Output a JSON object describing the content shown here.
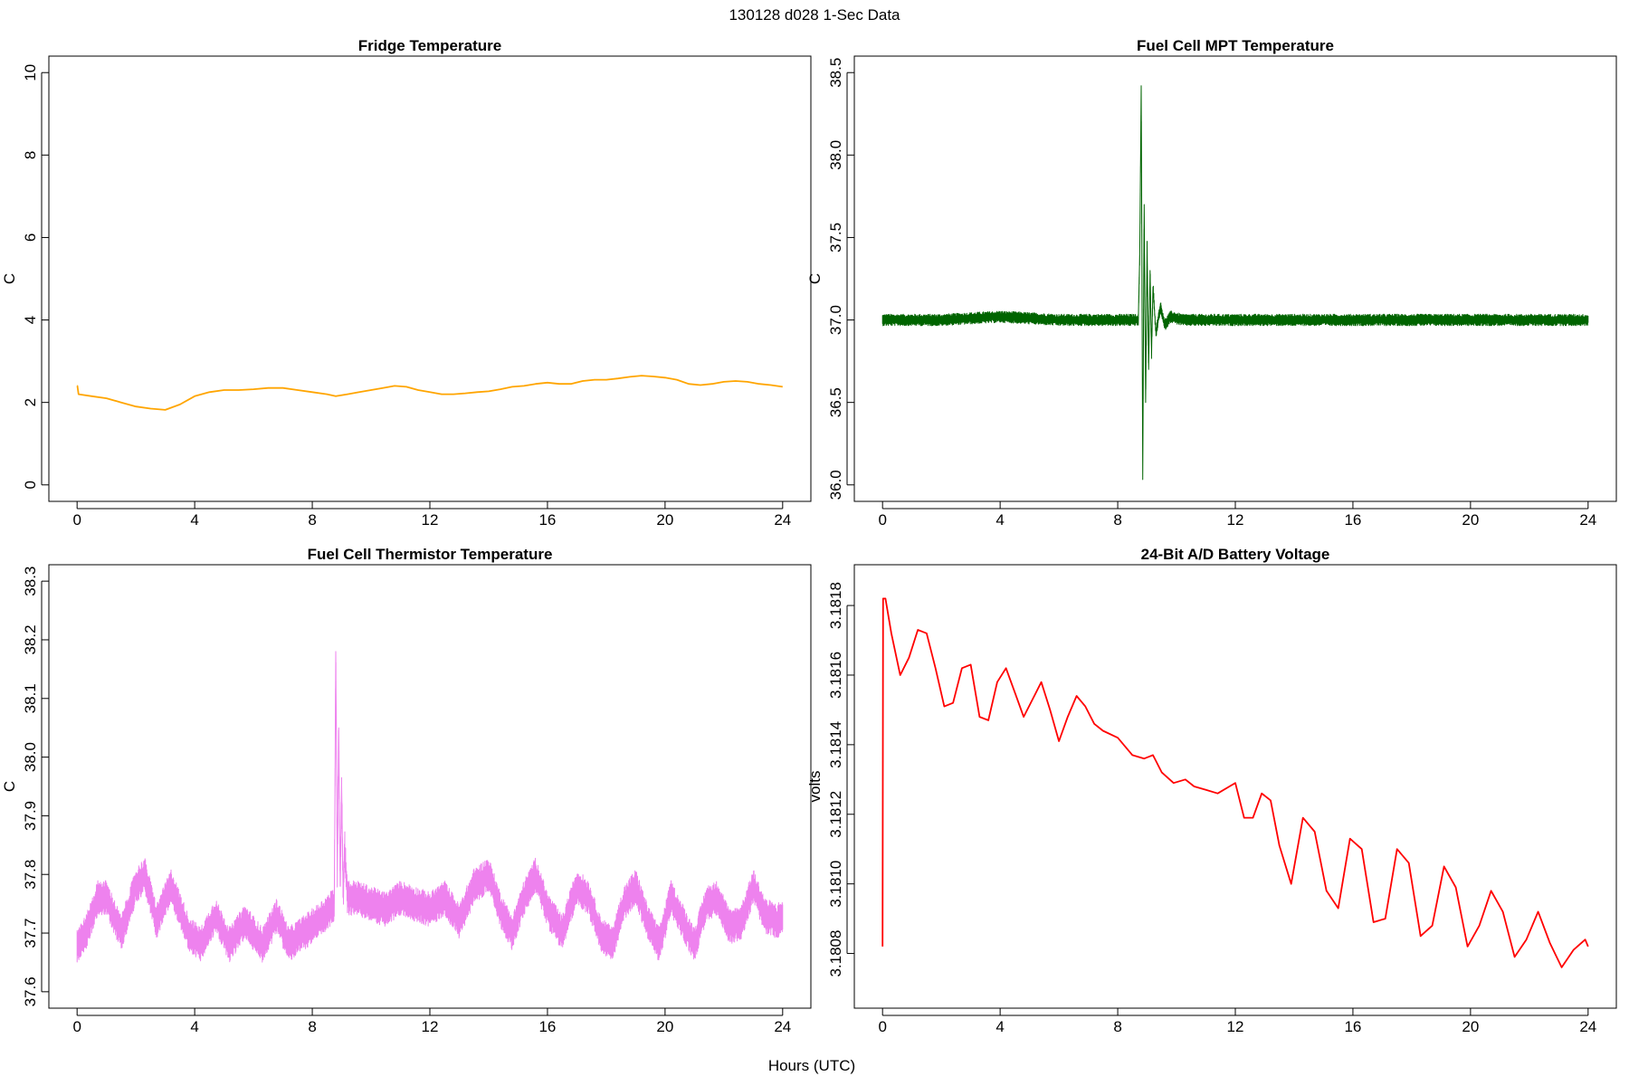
{
  "page": {
    "suptitle": "130128   d028   1-Sec Data",
    "common_xlabel": "Hours (UTC)"
  },
  "chart_data": [
    {
      "type": "line",
      "title": "Fridge Temperature",
      "xlabel": "",
      "ylabel": "C",
      "xlim": [
        0,
        24
      ],
      "ylim": [
        0,
        10
      ],
      "xticks": [
        0,
        4,
        8,
        12,
        16,
        20,
        24
      ],
      "yticks": [
        0,
        2,
        4,
        6,
        8,
        10
      ],
      "ytick_labels": [
        "0",
        "2",
        "4",
        "6",
        "8",
        "10"
      ],
      "grid": false,
      "color": "#FFA500",
      "noise": 0,
      "series": [
        {
          "x": [
            0,
            0.01,
            0.05,
            0.5,
            1,
            1.5,
            2,
            2.5,
            3,
            3.5,
            4,
            4.5,
            5,
            5.5,
            6,
            6.5,
            7,
            7.5,
            8,
            8.5,
            8.8,
            9.2,
            9.6,
            10,
            10.4,
            10.8,
            11.2,
            11.6,
            12,
            12.4,
            12.8,
            13.2,
            13.6,
            14,
            14.4,
            14.8,
            15.2,
            15.6,
            16,
            16.4,
            16.8,
            17.2,
            17.6,
            18,
            18.4,
            18.8,
            19.2,
            19.6,
            20,
            20.4,
            20.8,
            21.2,
            21.6,
            22,
            22.4,
            22.8,
            23.2,
            23.6,
            24
          ],
          "y": [
            2.4,
            2.4,
            2.2,
            2.15,
            2.1,
            2.0,
            1.9,
            1.85,
            1.82,
            1.95,
            2.15,
            2.25,
            2.3,
            2.3,
            2.32,
            2.35,
            2.35,
            2.3,
            2.25,
            2.2,
            2.15,
            2.2,
            2.25,
            2.3,
            2.35,
            2.4,
            2.38,
            2.3,
            2.25,
            2.2,
            2.2,
            2.22,
            2.25,
            2.27,
            2.32,
            2.38,
            2.4,
            2.45,
            2.48,
            2.45,
            2.45,
            2.52,
            2.55,
            2.55,
            2.58,
            2.62,
            2.65,
            2.63,
            2.6,
            2.55,
            2.45,
            2.42,
            2.45,
            2.5,
            2.52,
            2.5,
            2.45,
            2.42,
            2.38
          ]
        }
      ]
    },
    {
      "type": "line",
      "title": "Fuel Cell MPT Temperature",
      "xlabel": "",
      "ylabel": "C",
      "xlim": [
        0,
        24
      ],
      "ylim": [
        36,
        38.5
      ],
      "xticks": [
        0,
        4,
        8,
        12,
        16,
        20,
        24
      ],
      "yticks": [
        36,
        36.5,
        37,
        37.5,
        38,
        38.5
      ],
      "ytick_labels": [
        "36.0",
        "36.5",
        "37.0",
        "37.5",
        "38.0",
        "38.5"
      ],
      "grid": false,
      "color": "#006400",
      "noise": 0.035,
      "series": [
        {
          "x": [
            0,
            2,
            4,
            6,
            8.7,
            8.75,
            8.8,
            8.85,
            8.9,
            8.95,
            9.0,
            9.05,
            9.1,
            9.15,
            9.2,
            9.3,
            9.45,
            9.6,
            9.8,
            10.2,
            12,
            14,
            16,
            18,
            20,
            22,
            24
          ],
          "y": [
            37.0,
            37.0,
            37.02,
            37.0,
            37.0,
            37.4,
            38.42,
            36.05,
            37.7,
            36.5,
            37.45,
            36.7,
            37.3,
            36.8,
            37.2,
            36.92,
            37.08,
            36.97,
            37.02,
            37.0,
            37.0,
            37.0,
            37.0,
            37.0,
            37.0,
            37.0,
            37.0
          ]
        }
      ]
    },
    {
      "type": "line",
      "title": "Fuel Cell Thermistor Temperature",
      "xlabel": "",
      "ylabel": "C",
      "xlim": [
        0,
        24
      ],
      "ylim": [
        37.6,
        38.3
      ],
      "xticks": [
        0,
        4,
        8,
        12,
        16,
        20,
        24
      ],
      "yticks": [
        37.6,
        37.7,
        37.8,
        37.9,
        38.0,
        38.1,
        38.2,
        38.3
      ],
      "ytick_labels": [
        "37.6",
        "37.7",
        "37.8",
        "37.9",
        "38.0",
        "38.1",
        "38.2",
        "38.3"
      ],
      "grid": false,
      "color": "#EE82EE",
      "noise": 0.03,
      "series": [
        {
          "x": [
            0,
            0.3,
            0.7,
            1.0,
            1.5,
            2.0,
            2.3,
            2.7,
            3.2,
            3.8,
            4.2,
            4.7,
            5.2,
            5.7,
            6.3,
            6.8,
            7.2,
            7.7,
            8.2,
            8.6,
            8.75,
            8.8,
            8.85,
            8.9,
            8.95,
            9.0,
            9.05,
            9.1,
            9.2,
            9.5,
            10,
            10.5,
            11,
            11.5,
            12,
            12.5,
            13,
            13.5,
            14,
            14.4,
            14.8,
            15.2,
            15.6,
            16,
            16.5,
            17,
            17.4,
            17.8,
            18.2,
            18.6,
            19.0,
            19.4,
            19.8,
            20.2,
            20.6,
            21.0,
            21.4,
            21.8,
            22.2,
            22.6,
            23.0,
            23.4,
            23.8,
            24
          ],
          "y": [
            37.68,
            37.7,
            37.76,
            37.76,
            37.7,
            37.78,
            37.8,
            37.72,
            37.78,
            37.7,
            37.68,
            37.73,
            37.68,
            37.72,
            37.68,
            37.73,
            37.68,
            37.7,
            37.72,
            37.74,
            37.75,
            38.18,
            37.8,
            38.05,
            37.78,
            37.95,
            37.76,
            37.85,
            37.76,
            37.76,
            37.75,
            37.74,
            37.76,
            37.75,
            37.74,
            37.76,
            37.72,
            37.78,
            37.8,
            37.74,
            37.7,
            37.76,
            37.8,
            37.74,
            37.7,
            37.78,
            37.76,
            37.7,
            37.68,
            37.75,
            37.78,
            37.72,
            37.68,
            37.76,
            37.72,
            37.68,
            37.75,
            37.76,
            37.71,
            37.72,
            37.78,
            37.73,
            37.72,
            37.73
          ]
        }
      ]
    },
    {
      "type": "line",
      "title": "24-Bit A/D Battery Voltage",
      "xlabel": "",
      "ylabel": "volts",
      "xlim": [
        0,
        24
      ],
      "ylim": [
        3.18069,
        3.18187
      ],
      "xticks": [
        0,
        4,
        8,
        12,
        16,
        20,
        24
      ],
      "yticks": [
        3.1808,
        3.181,
        3.1812,
        3.1814,
        3.1816,
        3.1818
      ],
      "ytick_labels": [
        "3.1808",
        "3.1810",
        "3.1812",
        "3.1814",
        "3.1816",
        "3.1818"
      ],
      "grid": false,
      "color": "#FF0000",
      "noise": 0,
      "series": [
        {
          "x": [
            0,
            0.02,
            0.1,
            0.3,
            0.6,
            0.9,
            1.2,
            1.5,
            1.8,
            2.1,
            2.4,
            2.7,
            3.0,
            3.3,
            3.6,
            3.9,
            4.2,
            4.5,
            4.8,
            5.1,
            5.4,
            5.7,
            6.0,
            6.3,
            6.6,
            6.9,
            7.2,
            7.5,
            8.0,
            8.5,
            8.9,
            9.2,
            9.5,
            9.9,
            10.3,
            10.6,
            11.0,
            11.4,
            11.8,
            12.0,
            12.3,
            12.6,
            12.9,
            13.2,
            13.5,
            13.9,
            14.3,
            14.7,
            15.1,
            15.5,
            15.9,
            16.3,
            16.7,
            17.1,
            17.5,
            17.9,
            18.3,
            18.7,
            19.1,
            19.5,
            19.9,
            20.3,
            20.7,
            21.1,
            21.5,
            21.9,
            22.3,
            22.7,
            23.1,
            23.5,
            23.9,
            24
          ],
          "y": [
            3.18082,
            3.18182,
            3.18182,
            3.18172,
            3.1816,
            3.18165,
            3.18173,
            3.18172,
            3.18162,
            3.18151,
            3.18152,
            3.18162,
            3.18163,
            3.18148,
            3.18147,
            3.18158,
            3.18162,
            3.18155,
            3.18148,
            3.18153,
            3.18158,
            3.1815,
            3.18141,
            3.18148,
            3.18154,
            3.18151,
            3.18146,
            3.18144,
            3.18142,
            3.18137,
            3.18136,
            3.18137,
            3.18132,
            3.18129,
            3.1813,
            3.18128,
            3.18127,
            3.18126,
            3.18128,
            3.18129,
            3.18119,
            3.18119,
            3.18126,
            3.18124,
            3.18111,
            3.181,
            3.18119,
            3.18115,
            3.18098,
            3.18093,
            3.18113,
            3.1811,
            3.18089,
            3.1809,
            3.1811,
            3.18106,
            3.18085,
            3.18088,
            3.18105,
            3.18099,
            3.18082,
            3.18088,
            3.18098,
            3.18092,
            3.18079,
            3.18084,
            3.18092,
            3.18083,
            3.18076,
            3.18081,
            3.18084,
            3.18082
          ]
        }
      ]
    }
  ]
}
